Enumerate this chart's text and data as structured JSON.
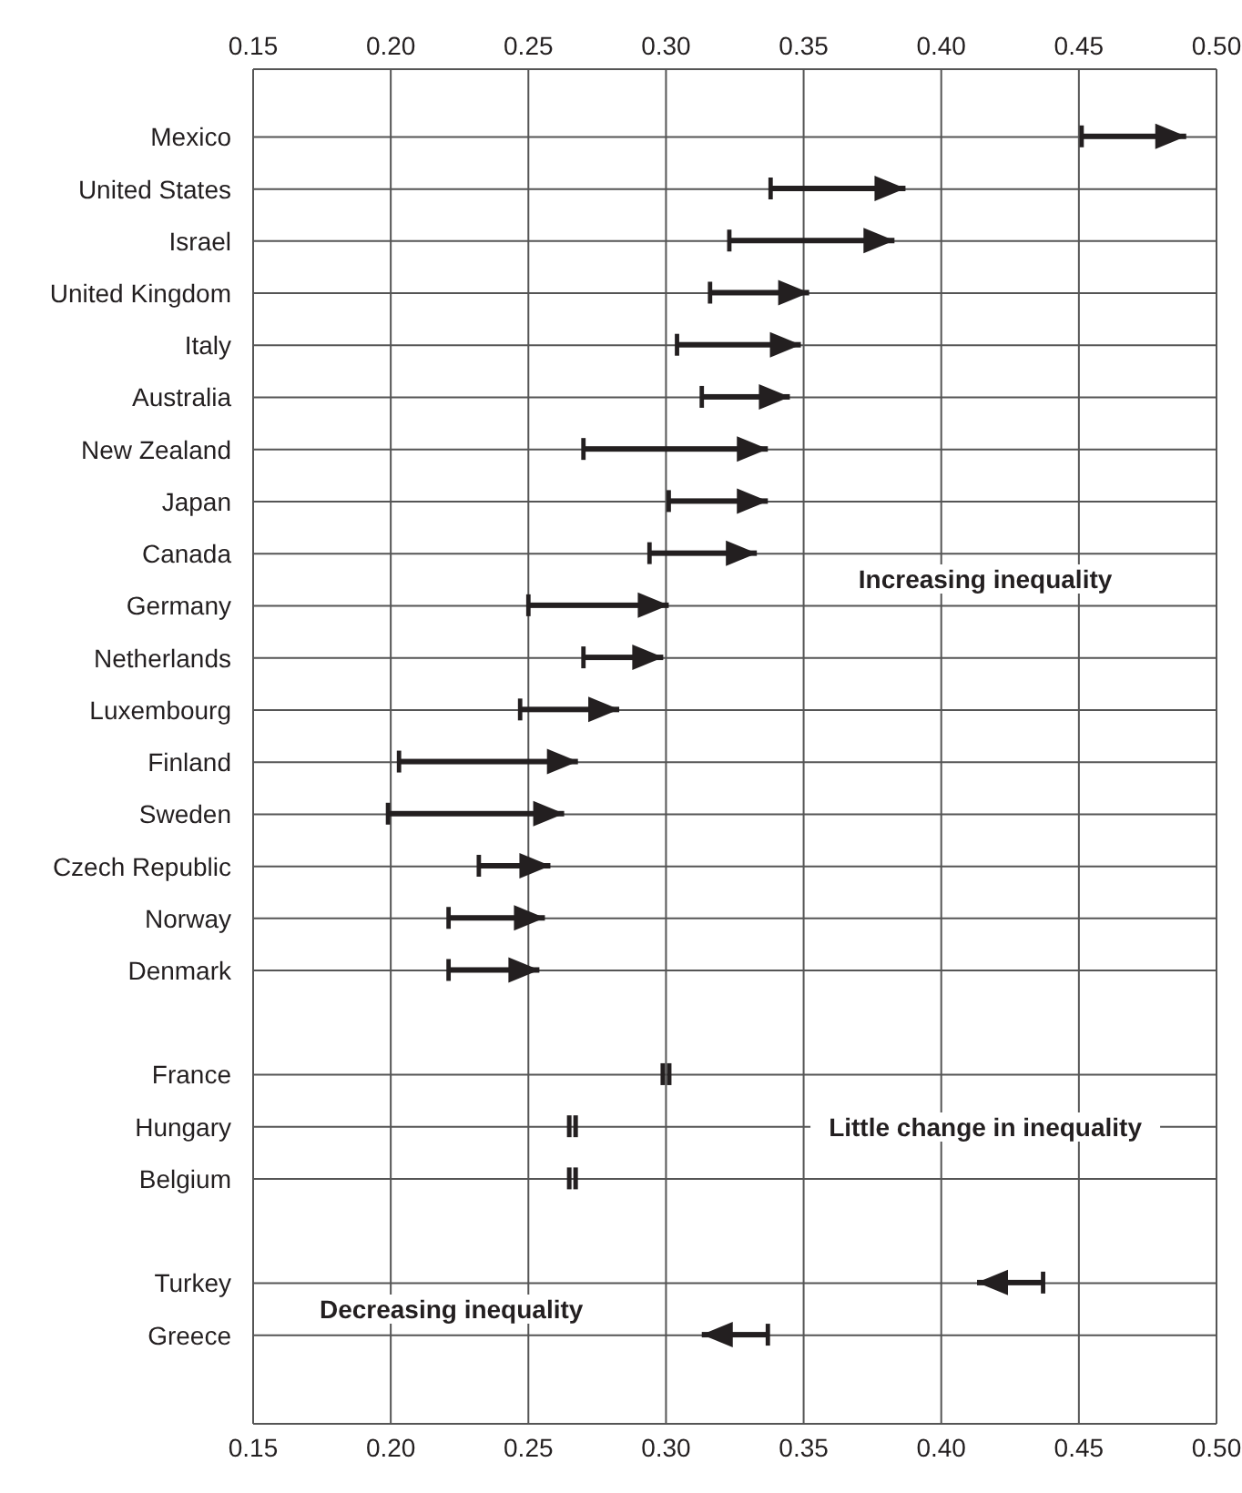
{
  "chart_data": {
    "type": "bar",
    "orientation": "horizontal",
    "color": "#231f20",
    "categories": [
      "Mexico",
      "United States",
      "Israel",
      "United Kingdom",
      "Italy",
      "Australia",
      "New Zealand",
      "Japan",
      "Canada",
      "Germany",
      "Netherlands",
      "Luxembourg",
      "Finland",
      "Sweden",
      "Czech Republic",
      "Norway",
      "Denmark",
      null,
      "France",
      "Hungary",
      "Belgium",
      null,
      "Turkey",
      "Greece"
    ],
    "base": [
      0.451,
      0.338,
      0.323,
      0.316,
      0.304,
      0.313,
      0.27,
      0.301,
      0.294,
      0.25,
      0.27,
      0.247,
      0.203,
      0.199,
      0.232,
      0.221,
      0.221,
      null,
      0.3,
      0.266,
      0.266,
      null,
      0.437,
      0.337
    ],
    "values": [
      0.038,
      0.049,
      0.06,
      0.036,
      0.045,
      0.032,
      0.067,
      0.036,
      0.039,
      0.051,
      0.029,
      0.036,
      0.065,
      0.064,
      0.026,
      0.035,
      0.033,
      null,
      0,
      0,
      0,
      null,
      -0.024,
      -0.024
    ],
    "xlim": [
      0.15,
      0.5
    ],
    "xticks": [
      {
        "value": 0.15,
        "label": "0.15"
      },
      {
        "value": 0.2,
        "label": "0.20"
      },
      {
        "value": 0.25,
        "label": "0.25"
      },
      {
        "value": 0.3,
        "label": "0.30"
      },
      {
        "value": 0.35,
        "label": "0.35"
      },
      {
        "value": 0.4,
        "label": "0.40"
      },
      {
        "value": 0.45,
        "label": "0.45"
      },
      {
        "value": 0.5,
        "label": "0.50"
      }
    ],
    "x2lim": [
      0.15,
      0.5
    ],
    "x2ticks": [
      {
        "value": 0.15,
        "label": "0.15"
      },
      {
        "value": 0.2,
        "label": "0.20"
      },
      {
        "value": 0.25,
        "label": "0.25"
      },
      {
        "value": 0.3,
        "label": "0.30"
      },
      {
        "value": 0.35,
        "label": "0.35"
      },
      {
        "value": 0.4,
        "label": "0.40"
      },
      {
        "value": 0.45,
        "label": "0.45"
      },
      {
        "value": 0.5,
        "label": "0.50"
      }
    ],
    "grid": true,
    "annotations": [
      "Increasing inequality",
      "Little change in inequality",
      "Decreasing inequality"
    ]
  }
}
